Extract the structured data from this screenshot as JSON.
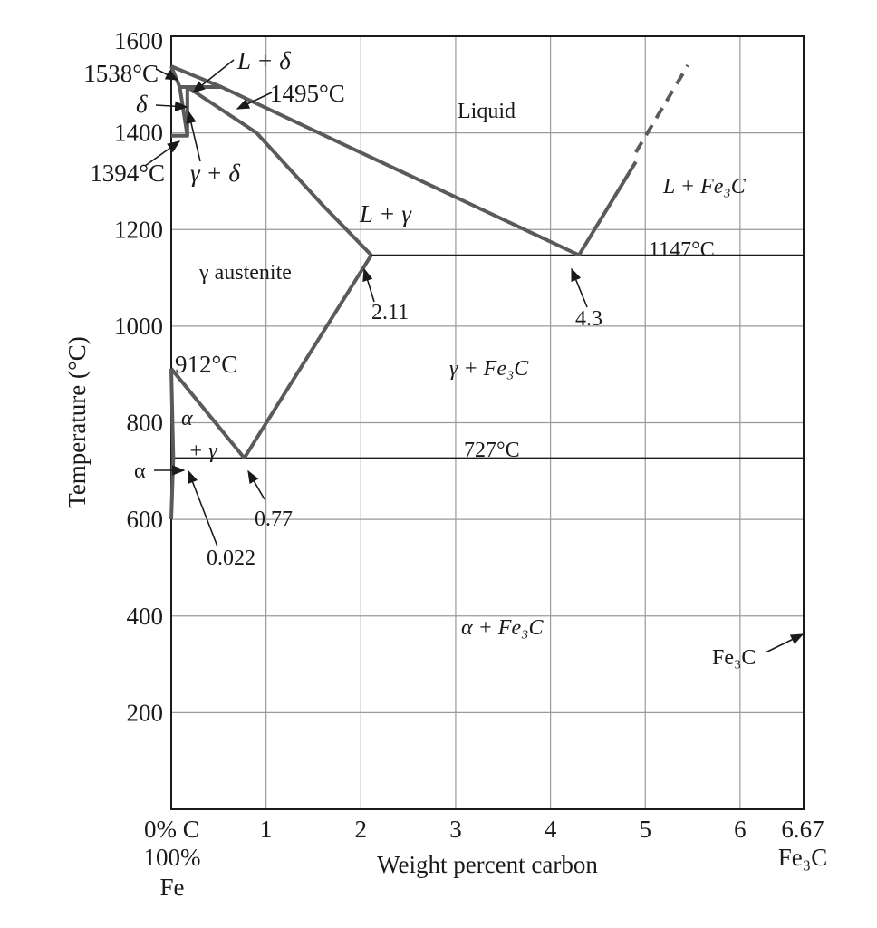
{
  "chart_data": {
    "type": "line",
    "title": "",
    "xlabel": "Weight percent carbon",
    "ylabel": "Temperature (°C)",
    "xlim": [
      0,
      6.67
    ],
    "ylim": [
      0,
      1600
    ],
    "grid": true,
    "x_ticks": [
      "0% C",
      "1",
      "2",
      "3",
      "4",
      "5",
      "6",
      "6.67"
    ],
    "x_tick_values": [
      0,
      1,
      2,
      3,
      4,
      5,
      6,
      6.67
    ],
    "y_ticks": [
      "200",
      "400",
      "600",
      "800",
      "1000",
      "1200",
      "1400",
      "1600"
    ],
    "y_tick_values": [
      200,
      400,
      600,
      800,
      1000,
      1200,
      1400,
      1600
    ],
    "x_left_sub": [
      "100%",
      "Fe"
    ],
    "x_right_sub": "Fe₃C",
    "phase_boundaries": [
      {
        "name": "liquidus-left",
        "points": [
          [
            0,
            1538
          ],
          [
            0.53,
            1495
          ],
          [
            4.3,
            1147
          ]
        ]
      },
      {
        "name": "liquidus-right",
        "points": [
          [
            4.3,
            1147
          ],
          [
            4.9,
            1340
          ]
        ]
      },
      {
        "name": "liquidus-right-extension",
        "style": "dashed",
        "points": [
          [
            4.9,
            1360
          ],
          [
            5.45,
            1540
          ]
        ]
      },
      {
        "name": "delta-solidus",
        "points": [
          [
            0,
            1538
          ],
          [
            0.09,
            1495
          ]
        ]
      },
      {
        "name": "delta-solvus",
        "points": [
          [
            0.09,
            1495
          ],
          [
            0.17,
            1394
          ],
          [
            0,
            1394
          ]
        ]
      },
      {
        "name": "gamma-delta-boundary",
        "points": [
          [
            0.17,
            1495
          ],
          [
            0.17,
            1394
          ]
        ]
      },
      {
        "name": "peritectic-line",
        "points": [
          [
            0.09,
            1495
          ],
          [
            0.53,
            1495
          ]
        ]
      },
      {
        "name": "austenite-solidus",
        "points": [
          [
            0.17,
            1495
          ],
          [
            0.9,
            1400
          ],
          [
            1.6,
            1250
          ],
          [
            2.11,
            1147
          ]
        ]
      },
      {
        "name": "acm-line",
        "points": [
          [
            2.11,
            1147
          ],
          [
            0.77,
            727
          ]
        ]
      },
      {
        "name": "a3-line",
        "points": [
          [
            0,
            912
          ],
          [
            0.77,
            727
          ]
        ]
      },
      {
        "name": "gamma-alpha-boundary",
        "points": [
          [
            0,
            912
          ],
          [
            0.022,
            727
          ]
        ]
      },
      {
        "name": "ferrite-solvus",
        "points": [
          [
            0.022,
            727
          ],
          [
            0,
            600
          ]
        ]
      }
    ],
    "isotherms": [
      {
        "label": "1147°C",
        "temperature": 1147,
        "from": 2.11,
        "to": 6.67
      },
      {
        "label": "727°C",
        "temperature": 727,
        "from": 0,
        "to": 6.67
      },
      {
        "label": "1495°C",
        "temperature": 1495,
        "from": 0.09,
        "to": 0.53
      }
    ],
    "point_labels": [
      "1538°C",
      "1495°C",
      "1394°C",
      "912°C",
      "2.11",
      "4.3",
      "0.77",
      "0.022",
      "1147°C",
      "727°C"
    ],
    "region_labels": {
      "liquid": "Liquid",
      "l_delta": "L + δ",
      "delta": "δ",
      "gamma_delta": "γ + δ",
      "l_gamma": "L + γ",
      "austenite": "γ austenite",
      "l_fe3c": "L + Fe₃C",
      "gamma_fe3c": "γ + Fe₃C",
      "alpha_gamma_top": "α",
      "alpha_gamma_bottom": "+ γ",
      "alpha": "α",
      "alpha_fe3c": "α + Fe₃C",
      "fe3c": "Fe₃C"
    }
  }
}
